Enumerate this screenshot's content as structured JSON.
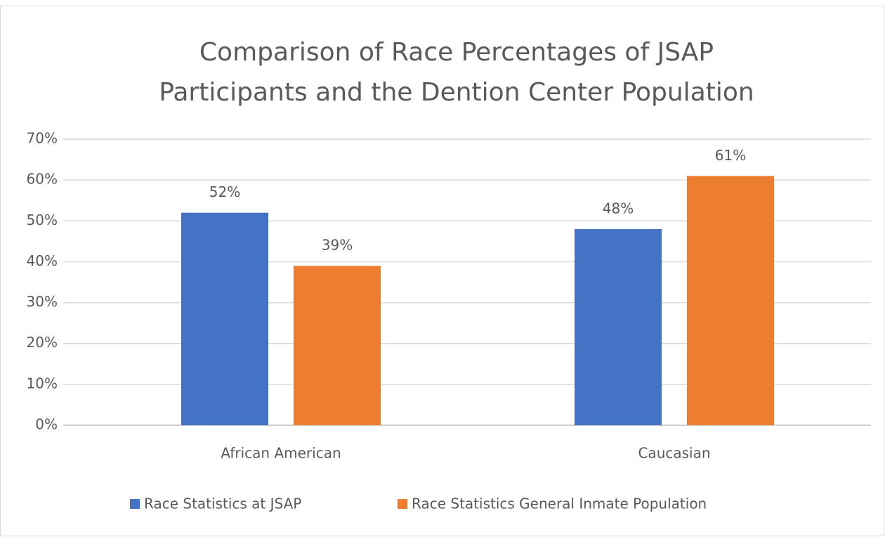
{
  "chart_data": {
    "type": "bar",
    "title": [
      "Comparison of Race Percentages of JSAP",
      "Participants and the Dention Center Population"
    ],
    "categories": [
      "African American",
      "Caucasian"
    ],
    "series": [
      {
        "name": "Race Statistics at JSAP",
        "color": "#4472c4",
        "values": [
          52,
          48
        ],
        "value_labels": [
          "52%",
          "48%"
        ]
      },
      {
        "name": "Race Statistics General Inmate Population",
        "color": "#ed7d31",
        "values": [
          39,
          61
        ],
        "value_labels": [
          "39%",
          "61%"
        ]
      }
    ],
    "ylim": [
      0,
      70
    ],
    "yticks": [
      {
        "value": 0,
        "label": "0%"
      },
      {
        "value": 10,
        "label": "10%"
      },
      {
        "value": 20,
        "label": "20%"
      },
      {
        "value": 30,
        "label": "30%"
      },
      {
        "value": 40,
        "label": "40%"
      },
      {
        "value": 50,
        "label": "50%"
      },
      {
        "value": 60,
        "label": "60%"
      },
      {
        "value": 70,
        "label": "70%"
      }
    ],
    "grid": true,
    "legend": "bottom"
  }
}
